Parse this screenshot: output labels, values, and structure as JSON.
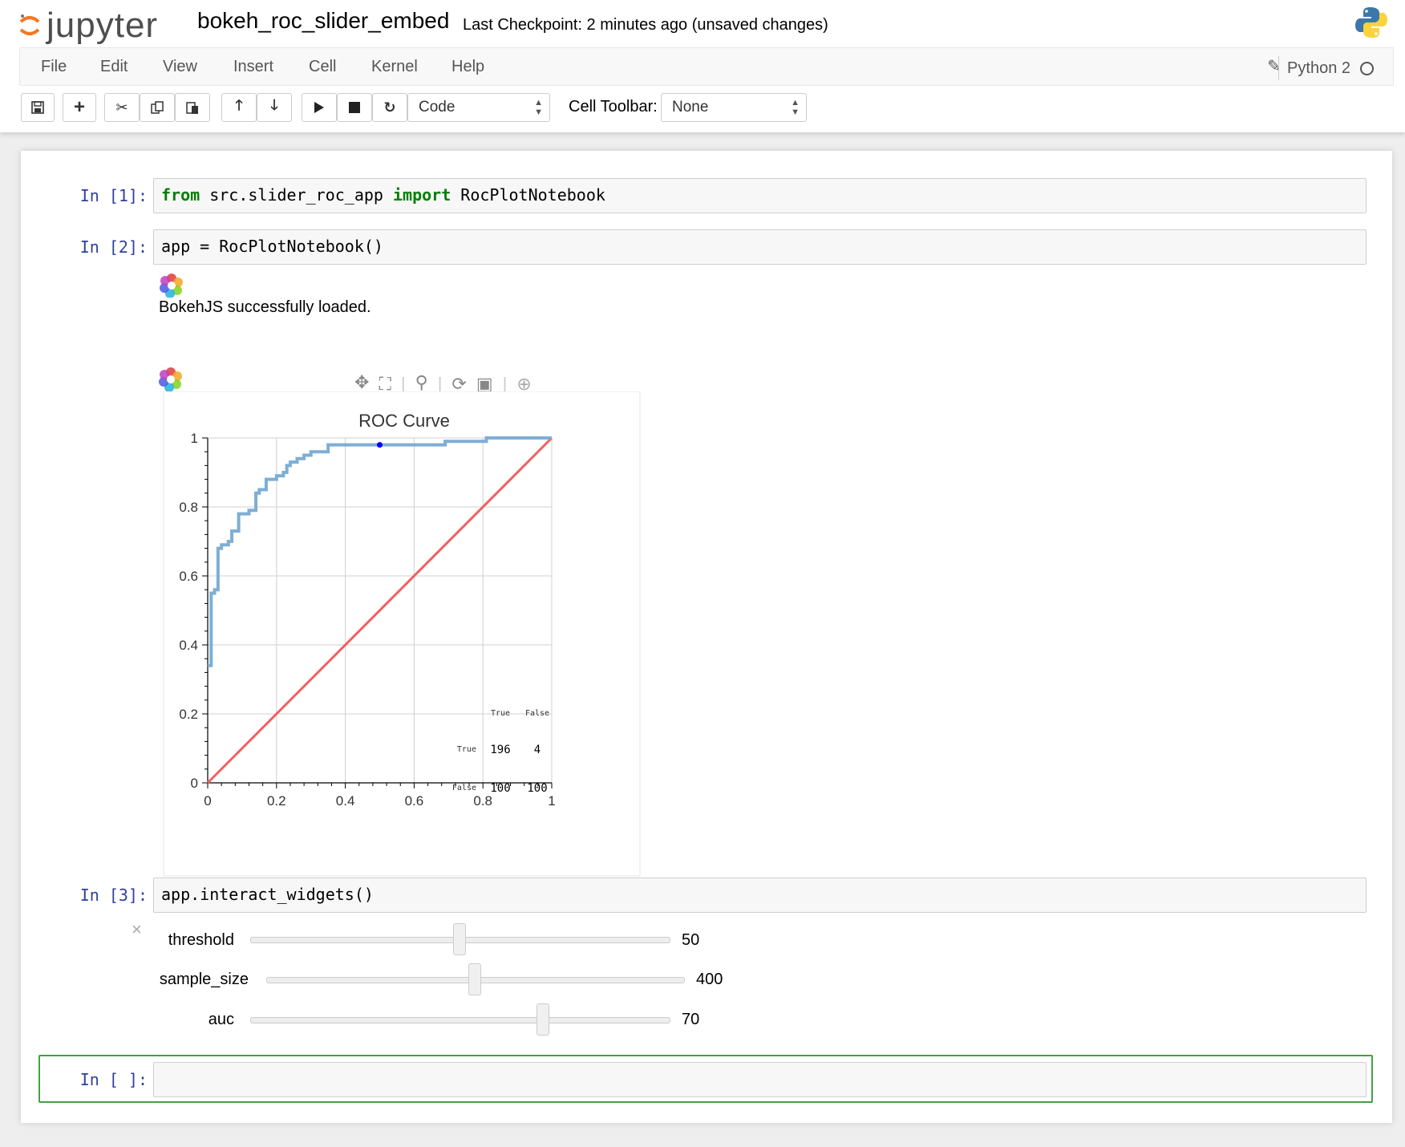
{
  "header": {
    "logo_text": "jupyter",
    "notebook_name": "bokeh_roc_slider_embed",
    "checkpoint": "Last Checkpoint: 2 minutes ago (unsaved changes)"
  },
  "menu": {
    "items": [
      "File",
      "Edit",
      "View",
      "Insert",
      "Cell",
      "Kernel",
      "Help"
    ],
    "kernel_name": "Python 2"
  },
  "toolbar": {
    "cell_type": "Code",
    "cell_toolbar_label": "Cell Toolbar:",
    "cell_toolbar_value": "None"
  },
  "cells": [
    {
      "prompt": "In [1]:",
      "code_kw1": "from",
      "code_mid": " src.slider_roc_app ",
      "code_kw2": "import",
      "code_end": " RocPlotNotebook"
    },
    {
      "prompt": "In [2]:",
      "code": "app = RocPlotNotebook()",
      "output": "BokehJS successfully loaded."
    },
    {
      "prompt": "In [3]:",
      "code": "app.interact_widgets()"
    },
    {
      "prompt": "In [ ]:",
      "code": ""
    }
  ],
  "widgets": [
    {
      "label": "threshold",
      "value": "50",
      "fraction": 0.5
    },
    {
      "label": "sample_size",
      "value": "400",
      "fraction": 0.5
    },
    {
      "label": "auc",
      "value": "70",
      "fraction": 0.7
    }
  ],
  "chart_data": {
    "type": "line",
    "title": "ROC Curve",
    "xlim": [
      0,
      1
    ],
    "ylim": [
      0,
      1
    ],
    "x_ticks": [
      "0",
      "0.2",
      "0.4",
      "0.6",
      "0.8",
      "1"
    ],
    "y_ticks": [
      "0",
      "0.2",
      "0.4",
      "0.6",
      "0.8",
      "1"
    ],
    "grid": true,
    "series": [
      {
        "color": "#7eaed4",
        "x": [
          0,
          0.01,
          0.01,
          0.02,
          0.02,
          0.03,
          0.03,
          0.04,
          0.04,
          0.06,
          0.06,
          0.07,
          0.07,
          0.08,
          0.08,
          0.09,
          0.09,
          0.12,
          0.12,
          0.14,
          0.14,
          0.15,
          0.15,
          0.17,
          0.17,
          0.2,
          0.2,
          0.22,
          0.22,
          0.23,
          0.23,
          0.24,
          0.24,
          0.26,
          0.26,
          0.28,
          0.28,
          0.3,
          0.3,
          0.35,
          0.35,
          0.5,
          0.69,
          0.69,
          0.81,
          0.81,
          1.0
        ],
        "y": [
          0.34,
          0.34,
          0.55,
          0.55,
          0.56,
          0.56,
          0.68,
          0.68,
          0.69,
          0.69,
          0.7,
          0.7,
          0.73,
          0.73,
          0.73,
          0.73,
          0.78,
          0.78,
          0.79,
          0.79,
          0.84,
          0.84,
          0.85,
          0.85,
          0.88,
          0.88,
          0.89,
          0.89,
          0.9,
          0.9,
          0.92,
          0.92,
          0.93,
          0.93,
          0.94,
          0.94,
          0.95,
          0.95,
          0.96,
          0.96,
          0.98,
          0.98,
          0.98,
          0.99,
          0.99,
          1.0,
          1.0
        ]
      },
      {
        "color": "#f15f5f",
        "x": [
          0,
          1
        ],
        "y": [
          0,
          1
        ]
      }
    ],
    "marker": {
      "x": 0.5,
      "y": 0.98,
      "color": "#0000ff"
    },
    "confusion_table": {
      "col_headers": [
        "True",
        "False"
      ],
      "rows": [
        {
          "label": "True",
          "values": [
            "196",
            "4"
          ]
        },
        {
          "label": "False",
          "values": [
            "100",
            "100"
          ]
        }
      ]
    }
  }
}
